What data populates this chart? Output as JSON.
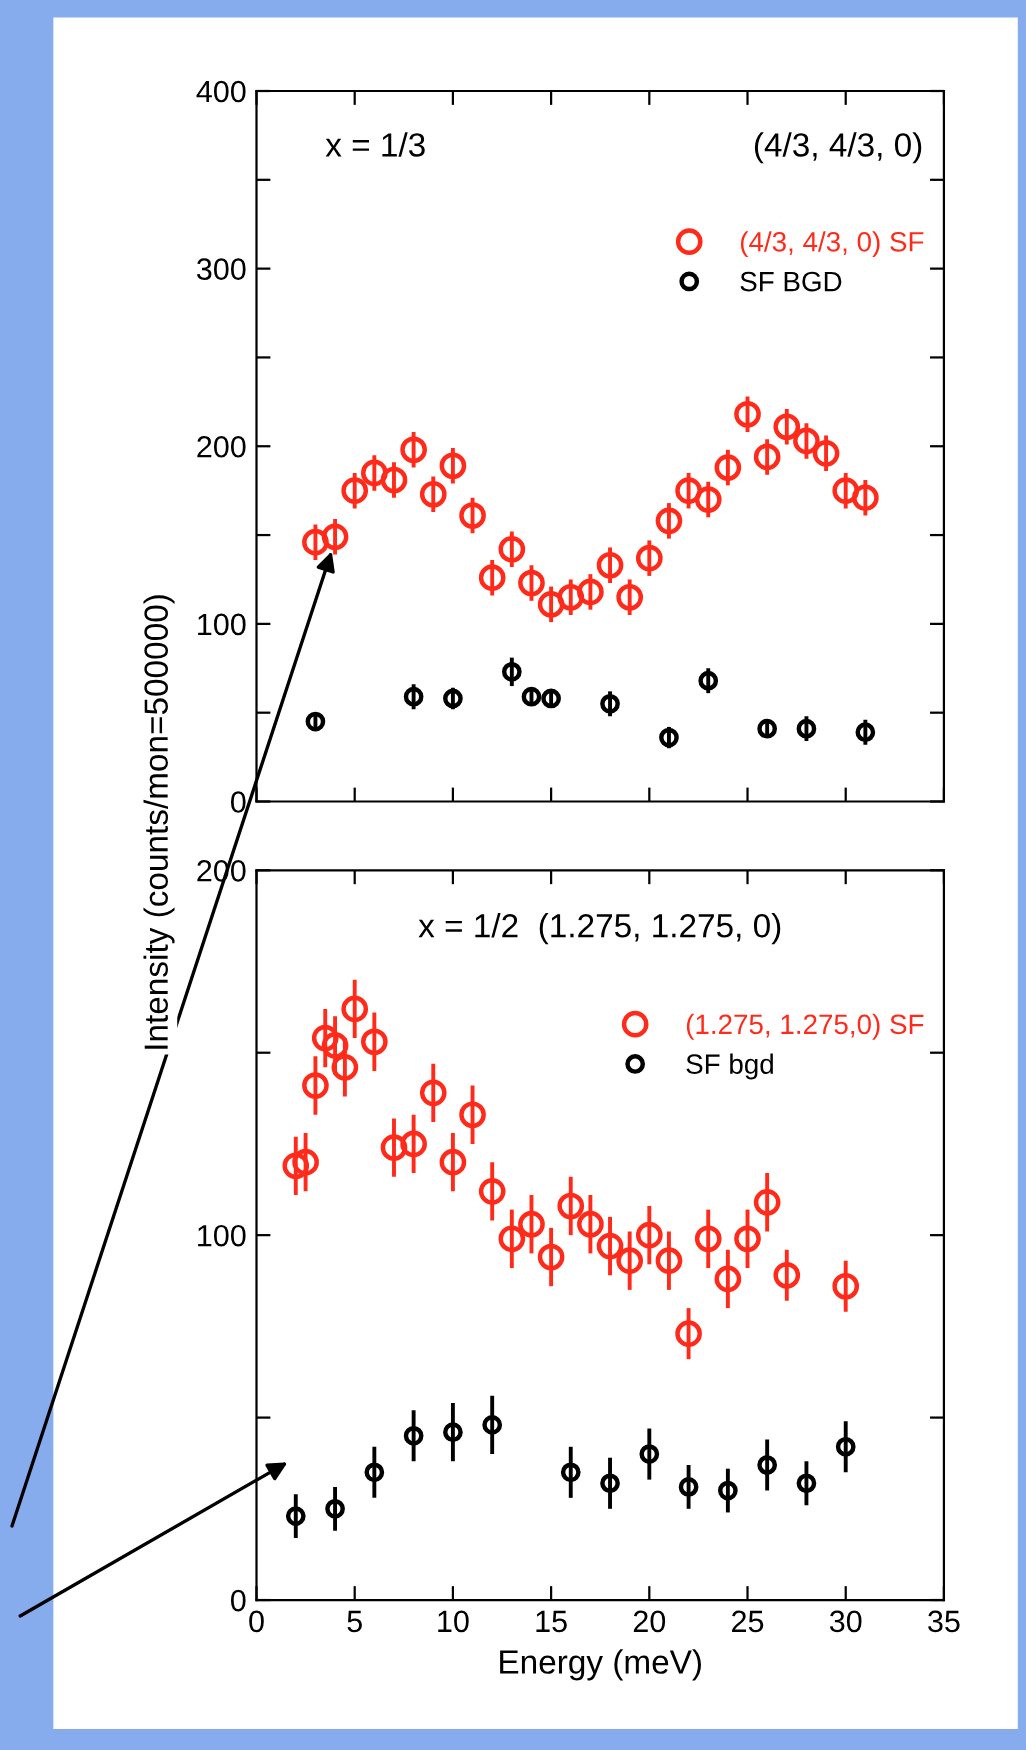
{
  "chart_data": [
    {
      "type": "scatter",
      "ylabel": "Intensity (counts/mon=500000)",
      "annotations": [
        "x = 1/3",
        "(4/3, 4/3, 0)"
      ],
      "xlim": [
        0,
        35
      ],
      "xticks": [
        {
          "value": 0,
          "label": null
        },
        {
          "value": 5,
          "label": null
        },
        {
          "value": 10,
          "label": null
        },
        {
          "value": 15,
          "label": null
        },
        {
          "value": 20,
          "label": null
        },
        {
          "value": 25,
          "label": null
        },
        {
          "value": 30,
          "label": null
        },
        {
          "value": 35,
          "label": null
        }
      ],
      "ylim": [
        0,
        400
      ],
      "yticks": [
        0,
        {
          "value": 50,
          "label": null
        },
        100,
        {
          "value": 150,
          "label": null
        },
        200,
        {
          "value": 250,
          "label": null
        },
        300,
        {
          "value": 350,
          "label": null
        },
        400
      ],
      "tick_labels": "y",
      "legend": "top right",
      "marker": "circle",
      "grid": false,
      "series": [
        {
          "name": "(4/3, 4/3, 0) SF",
          "color": "#ff2a1a",
          "x": [
            3,
            4,
            5,
            6,
            7,
            8,
            9,
            10,
            11,
            12,
            13,
            14,
            15,
            16,
            17,
            18,
            19,
            20,
            21,
            22,
            23,
            24,
            25,
            26,
            27,
            28,
            29,
            30,
            31
          ],
          "values": [
            146,
            149,
            175,
            185,
            181,
            198,
            173,
            189,
            161,
            126,
            142,
            123,
            111,
            115,
            118,
            133,
            115,
            137,
            158,
            175,
            170,
            188,
            218,
            194,
            211,
            203,
            196,
            175,
            171
          ],
          "errors": [
            10,
            10,
            10,
            10,
            10,
            10,
            10,
            10,
            10,
            10,
            10,
            10,
            10,
            10,
            10,
            10,
            10,
            10,
            10,
            10,
            10,
            10,
            10,
            10,
            10,
            10,
            10,
            10,
            10
          ]
        },
        {
          "name": "SF BGD",
          "color": "#000000",
          "x": [
            3,
            8,
            10,
            13,
            14,
            15,
            18,
            21,
            23,
            26,
            28,
            31
          ],
          "values": [
            45,
            59,
            58,
            73,
            59,
            58,
            55,
            36,
            68,
            41,
            41,
            39
          ],
          "errors": [
            4,
            7,
            6,
            8,
            5,
            4,
            7,
            6,
            7,
            5,
            7,
            7
          ]
        }
      ]
    },
    {
      "type": "scatter",
      "xlabel": "Energy (meV)",
      "annotations": [
        "x = 1/2  (1.275, 1.275, 0)"
      ],
      "xlim": [
        0,
        35
      ],
      "xticks": [
        0,
        5,
        10,
        15,
        20,
        25,
        30,
        35
      ],
      "ylim": [
        0,
        200
      ],
      "yticks": [
        0,
        {
          "value": 50,
          "label": null
        },
        100,
        {
          "value": 150,
          "label": null
        },
        200
      ],
      "legend": "top right",
      "marker": "circle",
      "grid": false,
      "series": [
        {
          "name": "(1.275, 1.275,0) SF",
          "color": "#ff2a1a",
          "x": [
            2,
            2.5,
            3,
            3.5,
            4,
            4.5,
            5,
            6,
            7,
            8,
            9,
            10,
            11,
            12,
            13,
            14,
            15,
            16,
            17,
            18,
            19,
            20,
            21,
            22,
            23,
            24,
            25,
            26,
            27,
            30
          ],
          "values": [
            119,
            120,
            141,
            154,
            152,
            146,
            162,
            153,
            124,
            125,
            139,
            120,
            133,
            112,
            99,
            103,
            94,
            108,
            103,
            97,
            93,
            100,
            93,
            73,
            99,
            88,
            99,
            109,
            89,
            86
          ],
          "errors": [
            8,
            8,
            8,
            8,
            8,
            8,
            8,
            8,
            8,
            8,
            8,
            8,
            8,
            8,
            8,
            8,
            8,
            8,
            8,
            8,
            8,
            8,
            8,
            7,
            8,
            8,
            8,
            8,
            7,
            7
          ]
        },
        {
          "name": "SF bgd",
          "color": "#000000",
          "x": [
            2,
            4,
            6,
            8,
            10,
            12,
            16,
            18,
            20,
            22,
            24,
            26,
            28,
            30
          ],
          "values": [
            23,
            25,
            35,
            45,
            46,
            48,
            35,
            32,
            40,
            31,
            30,
            37,
            32,
            42
          ],
          "errors": [
            6,
            6,
            7,
            7,
            8,
            8,
            7,
            7,
            7,
            6,
            6,
            7,
            6,
            7
          ]
        }
      ]
    }
  ]
}
